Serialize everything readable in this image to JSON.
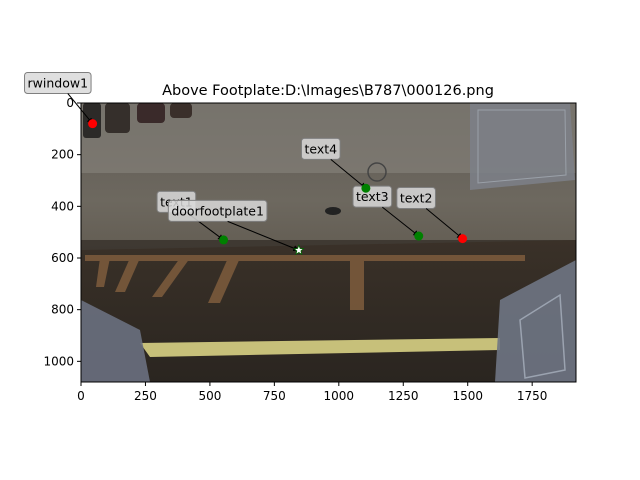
{
  "chart_data": {
    "type": "scatter",
    "title": "Above Footplate:D:\\Images\\B787\\000126.png",
    "xlabel": "",
    "ylabel": "",
    "xlim": [
      0,
      1920
    ],
    "ylim": [
      1080,
      0
    ],
    "y_inverted": true,
    "x_ticks": [
      0,
      250,
      500,
      750,
      1000,
      1250,
      1500,
      1750
    ],
    "y_ticks": [
      0,
      200,
      400,
      600,
      800,
      1000
    ],
    "grid": false,
    "background": "photograph (aircraft door area)",
    "points": [
      {
        "label": "rwindow1",
        "x": 45,
        "y": 80,
        "color": "#ff0000",
        "marker": "circle",
        "text_x": -90,
        "text_y": -60
      },
      {
        "label": "text4",
        "x": 1105,
        "y": 330,
        "color": "#008000",
        "marker": "circle",
        "text_x": 930,
        "text_y": 195
      },
      {
        "label": "text1",
        "x": 553,
        "y": 530,
        "color": "#008000",
        "marker": "circle",
        "text_x": 370,
        "text_y": 400
      },
      {
        "label": "doorfootplate1",
        "x": 845,
        "y": 570,
        "color": "#ffffff",
        "marker": "star",
        "text_x": 530,
        "text_y": 435
      },
      {
        "label": "text3",
        "x": 1310,
        "y": 515,
        "color": "#008000",
        "marker": "circle",
        "text_x": 1130,
        "text_y": 380
      },
      {
        "label": "text2",
        "x": 1480,
        "y": 525,
        "color": "#ff0000",
        "marker": "circle",
        "text_x": 1300,
        "text_y": 385
      }
    ]
  },
  "colors": {
    "axis": "#000000",
    "annotation_box_fill": "#d9d9d9",
    "annotation_box_stroke": "#7f7f7f"
  }
}
